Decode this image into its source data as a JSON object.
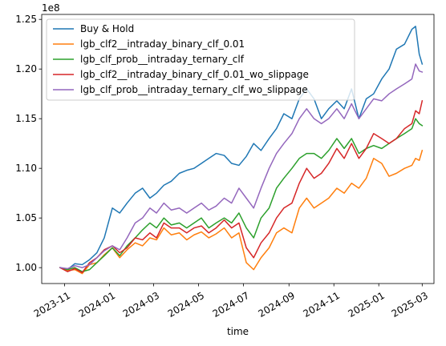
{
  "chart_data": {
    "type": "line",
    "title": "",
    "xlabel": "time",
    "ylabel": "",
    "y_offset_text": "1e8",
    "y_scale": 100000000,
    "xlim": [
      "2023-10-01",
      "2025-03-17"
    ],
    "ylim": [
      0.984,
      1.255
    ],
    "x_ticks": [
      {
        "date": "2023-11-01",
        "label": "2023-11"
      },
      {
        "date": "2024-01-01",
        "label": "2024-01"
      },
      {
        "date": "2024-03-01",
        "label": "2024-03"
      },
      {
        "date": "2024-05-01",
        "label": "2024-05"
      },
      {
        "date": "2024-07-01",
        "label": "2024-07"
      },
      {
        "date": "2024-09-01",
        "label": "2024-09"
      },
      {
        "date": "2024-11-01",
        "label": "2024-11"
      },
      {
        "date": "2025-01-01",
        "label": "2025-01"
      },
      {
        "date": "2025-03-01",
        "label": "2025-03"
      }
    ],
    "y_ticks": [
      {
        "value": 1.0,
        "label": "1.00"
      },
      {
        "value": 1.05,
        "label": "1.05"
      },
      {
        "value": 1.1,
        "label": "1.10"
      },
      {
        "value": 1.15,
        "label": "1.15"
      },
      {
        "value": 1.2,
        "label": "1.20"
      },
      {
        "value": 1.25,
        "label": "1.25"
      }
    ],
    "grid": false,
    "legend_position": "top-left",
    "series": [
      {
        "name": "Buy & Hold",
        "color": "#1f77b4",
        "x": [
          "2023-10-26",
          "2023-11-05",
          "2023-11-15",
          "2023-11-25",
          "2023-12-05",
          "2023-12-15",
          "2023-12-25",
          "2024-01-05",
          "2024-01-15",
          "2024-01-25",
          "2024-02-05",
          "2024-02-15",
          "2024-02-25",
          "2024-03-05",
          "2024-03-15",
          "2024-03-25",
          "2024-04-05",
          "2024-04-15",
          "2024-04-25",
          "2024-05-05",
          "2024-05-15",
          "2024-05-25",
          "2024-06-05",
          "2024-06-15",
          "2024-06-25",
          "2024-07-05",
          "2024-07-15",
          "2024-07-25",
          "2024-08-05",
          "2024-08-15",
          "2024-08-25",
          "2024-09-05",
          "2024-09-15",
          "2024-09-25",
          "2024-10-05",
          "2024-10-15",
          "2024-10-25",
          "2024-11-05",
          "2024-11-15",
          "2024-11-25",
          "2024-12-05",
          "2024-12-15",
          "2024-12-25",
          "2025-01-05",
          "2025-01-15",
          "2025-01-25",
          "2025-02-05",
          "2025-02-15",
          "2025-02-20",
          "2025-02-25",
          "2025-03-01"
        ],
        "values": [
          1.0,
          0.998,
          1.004,
          1.003,
          1.008,
          1.015,
          1.03,
          1.06,
          1.055,
          1.065,
          1.075,
          1.08,
          1.07,
          1.075,
          1.083,
          1.087,
          1.095,
          1.098,
          1.1,
          1.105,
          1.11,
          1.115,
          1.113,
          1.105,
          1.103,
          1.112,
          1.125,
          1.118,
          1.13,
          1.14,
          1.155,
          1.15,
          1.17,
          1.18,
          1.17,
          1.15,
          1.16,
          1.168,
          1.16,
          1.18,
          1.15,
          1.17,
          1.175,
          1.19,
          1.2,
          1.22,
          1.225,
          1.24,
          1.243,
          1.215,
          1.205
        ]
      },
      {
        "name": "lgb_clf2__intraday_binary_clf_0.01",
        "color": "#ff7f0e",
        "x": [
          "2023-10-26",
          "2023-11-05",
          "2023-11-15",
          "2023-11-25",
          "2023-12-05",
          "2023-12-15",
          "2023-12-25",
          "2024-01-05",
          "2024-01-15",
          "2024-01-25",
          "2024-02-05",
          "2024-02-15",
          "2024-02-25",
          "2024-03-05",
          "2024-03-15",
          "2024-03-25",
          "2024-04-05",
          "2024-04-15",
          "2024-04-25",
          "2024-05-05",
          "2024-05-15",
          "2024-05-25",
          "2024-06-05",
          "2024-06-15",
          "2024-06-25",
          "2024-07-05",
          "2024-07-15",
          "2024-07-25",
          "2024-08-05",
          "2024-08-15",
          "2024-08-25",
          "2024-09-05",
          "2024-09-15",
          "2024-09-25",
          "2024-10-05",
          "2024-10-15",
          "2024-10-25",
          "2024-11-05",
          "2024-11-15",
          "2024-11-25",
          "2024-12-05",
          "2024-12-15",
          "2024-12-25",
          "2025-01-05",
          "2025-01-15",
          "2025-01-25",
          "2025-02-05",
          "2025-02-15",
          "2025-02-20",
          "2025-02-25",
          "2025-03-01"
        ],
        "values": [
          1.0,
          0.997,
          0.998,
          0.994,
          1.003,
          1.005,
          1.013,
          1.02,
          1.01,
          1.018,
          1.025,
          1.022,
          1.03,
          1.028,
          1.04,
          1.033,
          1.035,
          1.028,
          1.033,
          1.036,
          1.03,
          1.034,
          1.04,
          1.03,
          1.035,
          1.005,
          0.998,
          1.01,
          1.02,
          1.035,
          1.04,
          1.035,
          1.06,
          1.07,
          1.06,
          1.065,
          1.07,
          1.08,
          1.075,
          1.085,
          1.08,
          1.09,
          1.11,
          1.105,
          1.092,
          1.095,
          1.1,
          1.103,
          1.11,
          1.108,
          1.118
        ]
      },
      {
        "name": "lgb_clf_prob__intraday_ternary_clf",
        "color": "#2ca02c",
        "x": [
          "2023-10-26",
          "2023-11-05",
          "2023-11-15",
          "2023-11-25",
          "2023-12-05",
          "2023-12-15",
          "2023-12-25",
          "2024-01-05",
          "2024-01-15",
          "2024-01-25",
          "2024-02-05",
          "2024-02-15",
          "2024-02-25",
          "2024-03-05",
          "2024-03-15",
          "2024-03-25",
          "2024-04-05",
          "2024-04-15",
          "2024-04-25",
          "2024-05-05",
          "2024-05-15",
          "2024-05-25",
          "2024-06-05",
          "2024-06-15",
          "2024-06-25",
          "2024-07-05",
          "2024-07-15",
          "2024-07-25",
          "2024-08-05",
          "2024-08-15",
          "2024-08-25",
          "2024-09-05",
          "2024-09-15",
          "2024-09-25",
          "2024-10-05",
          "2024-10-15",
          "2024-10-25",
          "2024-11-05",
          "2024-11-15",
          "2024-11-25",
          "2024-12-05",
          "2024-12-15",
          "2024-12-25",
          "2025-01-05",
          "2025-01-15",
          "2025-01-25",
          "2025-02-05",
          "2025-02-15",
          "2025-02-20",
          "2025-02-25",
          "2025-03-01"
        ],
        "values": [
          1.0,
          0.998,
          1.0,
          0.996,
          0.998,
          1.005,
          1.012,
          1.02,
          1.012,
          1.022,
          1.03,
          1.038,
          1.045,
          1.04,
          1.05,
          1.043,
          1.045,
          1.04,
          1.045,
          1.05,
          1.04,
          1.045,
          1.05,
          1.045,
          1.055,
          1.04,
          1.03,
          1.05,
          1.06,
          1.08,
          1.09,
          1.1,
          1.11,
          1.115,
          1.115,
          1.11,
          1.118,
          1.13,
          1.12,
          1.13,
          1.115,
          1.12,
          1.123,
          1.12,
          1.125,
          1.13,
          1.135,
          1.14,
          1.15,
          1.145,
          1.143
        ]
      },
      {
        "name": "lgb_clf2__intraday_binary_clf_0.01_wo_slippage",
        "color": "#d62728",
        "x": [
          "2023-10-26",
          "2023-11-05",
          "2023-11-15",
          "2023-11-25",
          "2023-12-05",
          "2023-12-15",
          "2023-12-25",
          "2024-01-05",
          "2024-01-15",
          "2024-01-25",
          "2024-02-05",
          "2024-02-15",
          "2024-02-25",
          "2024-03-05",
          "2024-03-15",
          "2024-03-25",
          "2024-04-05",
          "2024-04-15",
          "2024-04-25",
          "2024-05-05",
          "2024-05-15",
          "2024-05-25",
          "2024-06-05",
          "2024-06-15",
          "2024-06-25",
          "2024-07-05",
          "2024-07-15",
          "2024-07-25",
          "2024-08-05",
          "2024-08-15",
          "2024-08-25",
          "2024-09-05",
          "2024-09-15",
          "2024-09-25",
          "2024-10-05",
          "2024-10-15",
          "2024-10-25",
          "2024-11-05",
          "2024-11-15",
          "2024-11-25",
          "2024-12-05",
          "2024-12-15",
          "2024-12-25",
          "2025-01-05",
          "2025-01-15",
          "2025-01-25",
          "2025-02-05",
          "2025-02-15",
          "2025-02-20",
          "2025-02-25",
          "2025-03-01"
        ],
        "values": [
          1.0,
          0.996,
          0.999,
          0.995,
          1.005,
          1.01,
          1.018,
          1.022,
          1.015,
          1.02,
          1.03,
          1.028,
          1.035,
          1.03,
          1.045,
          1.04,
          1.04,
          1.035,
          1.04,
          1.042,
          1.035,
          1.04,
          1.048,
          1.04,
          1.045,
          1.02,
          1.01,
          1.025,
          1.035,
          1.05,
          1.06,
          1.065,
          1.085,
          1.1,
          1.09,
          1.095,
          1.105,
          1.12,
          1.11,
          1.125,
          1.11,
          1.12,
          1.135,
          1.13,
          1.125,
          1.13,
          1.14,
          1.145,
          1.158,
          1.155,
          1.168
        ]
      },
      {
        "name": "lgb_clf_prob__intraday_ternary_clf_wo_slippage",
        "color": "#9467bd",
        "x": [
          "2023-10-26",
          "2023-11-05",
          "2023-11-15",
          "2023-11-25",
          "2023-12-05",
          "2023-12-15",
          "2023-12-25",
          "2024-01-05",
          "2024-01-15",
          "2024-01-25",
          "2024-02-05",
          "2024-02-15",
          "2024-02-25",
          "2024-03-05",
          "2024-03-15",
          "2024-03-25",
          "2024-04-05",
          "2024-04-15",
          "2024-04-25",
          "2024-05-05",
          "2024-05-15",
          "2024-05-25",
          "2024-06-05",
          "2024-06-15",
          "2024-06-25",
          "2024-07-05",
          "2024-07-15",
          "2024-07-25",
          "2024-08-05",
          "2024-08-15",
          "2024-08-25",
          "2024-09-05",
          "2024-09-15",
          "2024-09-25",
          "2024-10-05",
          "2024-10-15",
          "2024-10-25",
          "2024-11-05",
          "2024-11-15",
          "2024-11-25",
          "2024-12-05",
          "2024-12-15",
          "2024-12-25",
          "2025-01-05",
          "2025-01-15",
          "2025-01-25",
          "2025-02-05",
          "2025-02-15",
          "2025-02-20",
          "2025-02-25",
          "2025-03-01"
        ],
        "values": [
          1.0,
          0.999,
          1.002,
          1.0,
          1.003,
          1.01,
          1.017,
          1.022,
          1.018,
          1.03,
          1.045,
          1.05,
          1.06,
          1.055,
          1.065,
          1.058,
          1.06,
          1.055,
          1.06,
          1.065,
          1.058,
          1.062,
          1.07,
          1.065,
          1.08,
          1.07,
          1.06,
          1.08,
          1.1,
          1.115,
          1.125,
          1.135,
          1.15,
          1.16,
          1.15,
          1.145,
          1.15,
          1.16,
          1.15,
          1.165,
          1.15,
          1.16,
          1.17,
          1.168,
          1.175,
          1.18,
          1.185,
          1.19,
          1.205,
          1.198,
          1.197
        ]
      }
    ]
  }
}
